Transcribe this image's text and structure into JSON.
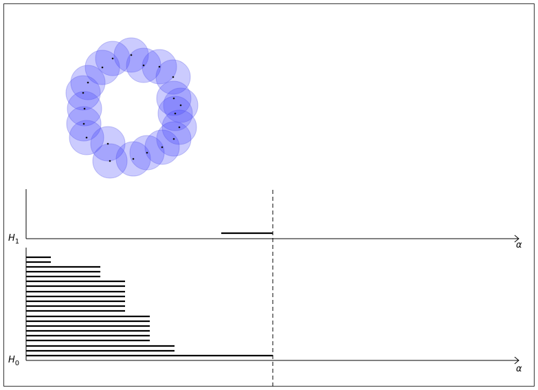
{
  "diagrams": [
    {
      "label": "H",
      "subscript": "1",
      "axis_label": "α"
    },
    {
      "label": "H",
      "subscript": "0",
      "axis_label": "α"
    }
  ]
}
